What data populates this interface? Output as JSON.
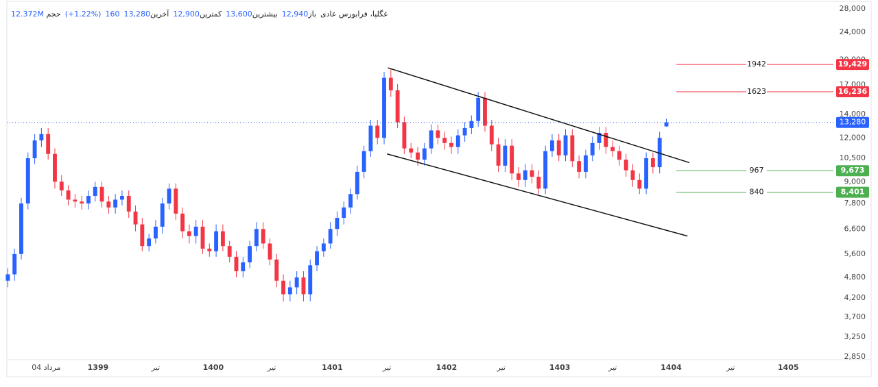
{
  "header": {
    "symbol": "غگلپا، فرابورس عادی",
    "fields": [
      {
        "label": "باز",
        "value": "12,940"
      },
      {
        "label": "بیشترین",
        "value": "13,600"
      },
      {
        "label": "کمترین",
        "value": "12,900"
      },
      {
        "label": "آخرین",
        "value": "13,280"
      },
      {
        "label": "حجم",
        "value": "12.372M"
      }
    ],
    "change": "160",
    "change_percent": "(+1.22%)"
  },
  "chart_data": {
    "type": "candlestick",
    "log_scale": true,
    "grid": false,
    "up_color": "#2962ff",
    "down_color": "#f23645",
    "xlim": [
      2.5,
      88.6
    ],
    "ylim": [
      2800,
      29000
    ],
    "xticks": [
      {
        "value": 6.6,
        "label": "04 مرداد"
      },
      {
        "value": 12,
        "label": "1399"
      },
      {
        "value": 18,
        "label": "تیر"
      },
      {
        "value": 24,
        "label": "1400"
      },
      {
        "value": 30.1,
        "label": "تیر"
      },
      {
        "value": 36.4,
        "label": "1401"
      },
      {
        "value": 42.1,
        "label": "تیر"
      },
      {
        "value": 48.3,
        "label": "1402"
      },
      {
        "value": 54,
        "label": "تیر"
      },
      {
        "value": 60.1,
        "label": "1403"
      },
      {
        "value": 65.6,
        "label": "تیر"
      },
      {
        "value": 71.7,
        "label": "1404"
      },
      {
        "value": 77.9,
        "label": "تیر"
      },
      {
        "value": 83.9,
        "label": "1405"
      }
    ],
    "yticks": [
      {
        "value": 28000,
        "label": "28,000"
      },
      {
        "value": 24000,
        "label": "24,000"
      },
      {
        "value": 20000,
        "label": "20,000"
      },
      {
        "value": 17000,
        "label": "17,000"
      },
      {
        "value": 14000,
        "label": "14,000"
      },
      {
        "value": 12000,
        "label": "12,000"
      },
      {
        "value": 10500,
        "label": "10,500"
      },
      {
        "value": 9000,
        "label": "9,000"
      },
      {
        "value": 7800,
        "label": "7,800"
      },
      {
        "value": 6600,
        "label": "6,600"
      },
      {
        "value": 5600,
        "label": "5,600"
      },
      {
        "value": 4800,
        "label": "4,800"
      },
      {
        "value": 4200,
        "label": "4,200"
      },
      {
        "value": 3700,
        "label": "3,700"
      },
      {
        "value": 3250,
        "label": "3,250"
      },
      {
        "value": 2850,
        "label": "2,850"
      }
    ],
    "x": [
      2.6,
      3.3,
      4,
      4.7,
      5.4,
      6.1,
      6.8,
      7.5,
      8.2,
      8.9,
      9.6,
      10.3,
      11,
      11.7,
      12.4,
      13.1,
      13.8,
      14.5,
      15.2,
      15.9,
      16.6,
      17.3,
      18,
      18.7,
      19.4,
      20.1,
      20.8,
      21.5,
      22.2,
      22.9,
      23.6,
      24.3,
      25,
      25.7,
      26.4,
      27.1,
      27.8,
      28.5,
      29.2,
      29.9,
      30.6,
      31.3,
      32,
      32.7,
      33.4,
      34.1,
      34.8,
      35.5,
      36.2,
      36.9,
      37.6,
      38.3,
      39,
      39.7,
      40.4,
      41.1,
      41.8,
      42.5,
      43.2,
      43.9,
      44.6,
      45.3,
      46,
      46.7,
      47.4,
      48.1,
      48.8,
      49.5,
      50.2,
      50.9,
      51.6,
      52.3,
      53,
      53.7,
      54.4,
      55.1,
      55.8,
      56.5,
      57.2,
      57.9,
      58.6,
      59.3,
      60,
      60.7,
      61.4,
      62.1,
      62.8,
      63.5,
      64.2,
      64.9,
      65.6,
      66.3,
      67,
      67.7,
      68.4,
      69.1,
      69.8,
      70.5,
      71.2
    ],
    "open": [
      4700,
      4900,
      5600,
      7800,
      10500,
      11800,
      12300,
      10800,
      9000,
      8500,
      8000,
      7900,
      7800,
      8200,
      8700,
      7900,
      7600,
      8000,
      8200,
      7400,
      6800,
      5900,
      6200,
      6700,
      7800,
      8600,
      7300,
      6500,
      6300,
      6700,
      5800,
      5700,
      6500,
      5900,
      5500,
      5000,
      5300,
      5900,
      6600,
      6000,
      5400,
      4700,
      4300,
      4500,
      4800,
      4300,
      5200,
      5700,
      6000,
      6600,
      7100,
      7600,
      8300,
      9600,
      11000,
      13000,
      12000,
      17800,
      16400,
      13300,
      11200,
      10900,
      10400,
      11200,
      12600,
      12000,
      11600,
      11300,
      12200,
      12800,
      13400,
      15600,
      13000,
      11500,
      10000,
      11400,
      9500,
      9100,
      9700,
      9300,
      8600,
      11000,
      11800,
      10700,
      12200,
      10300,
      9600,
      10700,
      11600,
      12400,
      11300,
      11000,
      10400,
      9700,
      9100,
      8600,
      10500,
      9900,
      12940
    ],
    "high": [
      5100,
      5800,
      8100,
      10900,
      12300,
      12800,
      12800,
      11200,
      9400,
      8800,
      8300,
      8200,
      8500,
      9000,
      9000,
      8200,
      8300,
      8500,
      8500,
      7700,
      7100,
      6400,
      7000,
      8100,
      8900,
      8900,
      7600,
      6800,
      7000,
      7000,
      6000,
      6800,
      6800,
      6100,
      5700,
      5500,
      6100,
      6900,
      6900,
      6200,
      5600,
      4900,
      4700,
      5000,
      5000,
      5400,
      5900,
      6200,
      6900,
      7400,
      7900,
      8600,
      10000,
      11400,
      13500,
      13500,
      18500,
      18900,
      17100,
      13800,
      11600,
      11300,
      11600,
      13100,
      13100,
      12500,
      12100,
      12700,
      13300,
      13900,
      16200,
      16200,
      13500,
      12000,
      11900,
      11900,
      9900,
      10100,
      10100,
      9700,
      11400,
      12300,
      12300,
      12700,
      12700,
      10700,
      11100,
      12100,
      12900,
      12900,
      11800,
      11400,
      10800,
      10100,
      9500,
      10900,
      10900,
      12500,
      13600
    ],
    "low": [
      4500,
      4700,
      5400,
      7500,
      10100,
      11300,
      10400,
      8600,
      8200,
      7700,
      7600,
      7500,
      7500,
      7900,
      7600,
      7300,
      7300,
      7700,
      7100,
      6500,
      5700,
      5700,
      6000,
      6400,
      7500,
      7000,
      6200,
      6000,
      6000,
      5600,
      5500,
      5500,
      5700,
      5300,
      4800,
      4800,
      5100,
      5700,
      5800,
      5200,
      4500,
      4100,
      4100,
      4300,
      4100,
      4100,
      5000,
      5500,
      5800,
      6300,
      6800,
      7300,
      8000,
      9200,
      10600,
      11500,
      11500,
      15700,
      12800,
      10800,
      10500,
      10000,
      10000,
      10800,
      11500,
      11100,
      10800,
      10800,
      11700,
      12300,
      12900,
      12500,
      11000,
      9600,
      9600,
      9100,
      8700,
      8700,
      8900,
      8300,
      8300,
      10600,
      10300,
      10300,
      9900,
      9200,
      9200,
      10300,
      11100,
      10800,
      10600,
      10000,
      9300,
      8700,
      8300,
      8300,
      9500,
      9500,
      12900
    ],
    "close": [
      4900,
      5600,
      7800,
      10500,
      11800,
      12300,
      10800,
      9000,
      8500,
      8000,
      7900,
      7800,
      8200,
      8700,
      7900,
      7600,
      8000,
      8200,
      7400,
      6800,
      5900,
      6200,
      6700,
      7800,
      8600,
      7300,
      6500,
      6300,
      6700,
      5800,
      5700,
      6500,
      5900,
      5500,
      5000,
      5300,
      5900,
      6600,
      6000,
      5400,
      4700,
      4300,
      4500,
      4800,
      4300,
      5200,
      5700,
      6000,
      6600,
      7100,
      7600,
      8300,
      9600,
      11000,
      13000,
      12000,
      17800,
      16400,
      13300,
      11200,
      10900,
      10400,
      11200,
      12600,
      12000,
      11600,
      11300,
      12200,
      12800,
      13400,
      15600,
      13000,
      11500,
      10000,
      11400,
      9500,
      9100,
      9700,
      9300,
      8600,
      11000,
      11800,
      10700,
      12200,
      10300,
      9600,
      10700,
      11600,
      12400,
      11300,
      11000,
      10400,
      9700,
      9100,
      8600,
      10500,
      9900,
      12000,
      13280
    ],
    "trendlines": [
      {
        "x": [
          42.2,
          73.6
        ],
        "y": [
          19000,
          10200
        ]
      },
      {
        "x": [
          42.1,
          73.4
        ],
        "y": [
          10800,
          6300
        ]
      }
    ],
    "levels": [
      {
        "label": "1942",
        "value": 19429,
        "value_label": "19,429",
        "color": "#f23645"
      },
      {
        "label": "1623",
        "value": 16236,
        "value_label": "16,236",
        "color": "#f23645"
      },
      {
        "label": "967",
        "value": 9673,
        "value_label": "9,673",
        "color": "#4caf50"
      },
      {
        "label": "840",
        "value": 8401,
        "value_label": "8,401",
        "color": "#4caf50"
      }
    ],
    "last_price": {
      "value": 13280,
      "label": "13,280",
      "color": "#2962ff"
    }
  }
}
